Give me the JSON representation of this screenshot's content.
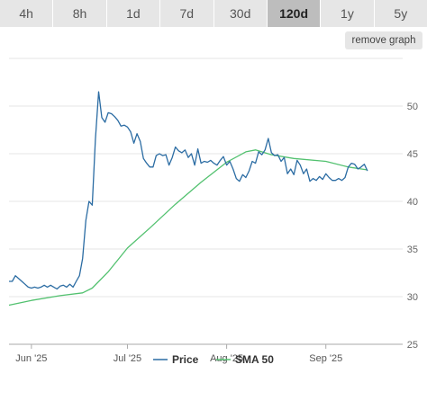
{
  "tabs": [
    {
      "label": "4h",
      "active": false
    },
    {
      "label": "8h",
      "active": false
    },
    {
      "label": "1d",
      "active": false
    },
    {
      "label": "7d",
      "active": false
    },
    {
      "label": "30d",
      "active": false
    },
    {
      "label": "120d",
      "active": true
    },
    {
      "label": "1y",
      "active": false
    },
    {
      "label": "5y",
      "active": false
    }
  ],
  "remove_graph_label": "remove graph",
  "colors": {
    "price": "#2b6ca3",
    "sma": "#52c16f",
    "grid": "#e6e6e6",
    "axis": "#aaaaaa"
  },
  "chart_data": {
    "type": "line",
    "title": "",
    "xlabel": "",
    "ylabel": "",
    "ylim": [
      25,
      55
    ],
    "yticks": [
      25,
      30,
      35,
      40,
      45,
      50
    ],
    "xlim": [
      "2025-05-25",
      "2025-09-25"
    ],
    "xticks": [
      {
        "date": "2025-06-01",
        "label": "Jun '25"
      },
      {
        "date": "2025-07-01",
        "label": "Jul '25"
      },
      {
        "date": "2025-08-01",
        "label": "Aug '25"
      },
      {
        "date": "2025-09-01",
        "label": "Sep '25"
      }
    ],
    "grid": "horizontal",
    "legend_position": "bottom",
    "series": [
      {
        "name": "Price",
        "color": "#2b6ca3",
        "points": [
          [
            "2025-05-25",
            31.6
          ],
          [
            "2025-05-26",
            31.6
          ],
          [
            "2025-05-27",
            32.2
          ],
          [
            "2025-05-28",
            31.9
          ],
          [
            "2025-05-29",
            31.6
          ],
          [
            "2025-05-30",
            31.3
          ],
          [
            "2025-05-31",
            31.0
          ],
          [
            "2025-06-01",
            30.9
          ],
          [
            "2025-06-02",
            31.0
          ],
          [
            "2025-06-03",
            30.9
          ],
          [
            "2025-06-04",
            31.0
          ],
          [
            "2025-06-05",
            31.2
          ],
          [
            "2025-06-06",
            31.0
          ],
          [
            "2025-06-07",
            31.2
          ],
          [
            "2025-06-08",
            31.0
          ],
          [
            "2025-06-09",
            30.8
          ],
          [
            "2025-06-10",
            31.1
          ],
          [
            "2025-06-11",
            31.2
          ],
          [
            "2025-06-12",
            31.0
          ],
          [
            "2025-06-13",
            31.3
          ],
          [
            "2025-06-14",
            31.0
          ],
          [
            "2025-06-15",
            31.6
          ],
          [
            "2025-06-16",
            32.2
          ],
          [
            "2025-06-17",
            34.0
          ],
          [
            "2025-06-18",
            38.0
          ],
          [
            "2025-06-19",
            40.0
          ],
          [
            "2025-06-20",
            39.6
          ],
          [
            "2025-06-21",
            46.5
          ],
          [
            "2025-06-22",
            51.5
          ],
          [
            "2025-06-23",
            48.8
          ],
          [
            "2025-06-24",
            48.3
          ],
          [
            "2025-06-25",
            49.3
          ],
          [
            "2025-06-26",
            49.2
          ],
          [
            "2025-06-27",
            48.9
          ],
          [
            "2025-06-28",
            48.5
          ],
          [
            "2025-06-29",
            47.9
          ],
          [
            "2025-06-30",
            48.0
          ],
          [
            "2025-07-01",
            47.8
          ],
          [
            "2025-07-02",
            47.3
          ],
          [
            "2025-07-03",
            46.1
          ],
          [
            "2025-07-04",
            47.1
          ],
          [
            "2025-07-05",
            46.3
          ],
          [
            "2025-07-06",
            44.5
          ],
          [
            "2025-07-07",
            44.0
          ],
          [
            "2025-07-08",
            43.6
          ],
          [
            "2025-07-09",
            43.6
          ],
          [
            "2025-07-10",
            44.8
          ],
          [
            "2025-07-11",
            45.0
          ],
          [
            "2025-07-12",
            44.8
          ],
          [
            "2025-07-13",
            44.9
          ],
          [
            "2025-07-14",
            43.8
          ],
          [
            "2025-07-15",
            44.6
          ],
          [
            "2025-07-16",
            45.7
          ],
          [
            "2025-07-17",
            45.3
          ],
          [
            "2025-07-18",
            45.1
          ],
          [
            "2025-07-19",
            45.4
          ],
          [
            "2025-07-20",
            44.6
          ],
          [
            "2025-07-21",
            45.0
          ],
          [
            "2025-07-22",
            43.8
          ],
          [
            "2025-07-23",
            45.5
          ],
          [
            "2025-07-24",
            44.0
          ],
          [
            "2025-07-25",
            44.2
          ],
          [
            "2025-07-26",
            44.1
          ],
          [
            "2025-07-27",
            44.3
          ],
          [
            "2025-07-28",
            44.0
          ],
          [
            "2025-07-29",
            43.8
          ],
          [
            "2025-07-30",
            44.3
          ],
          [
            "2025-07-31",
            44.7
          ],
          [
            "2025-08-01",
            43.8
          ],
          [
            "2025-08-02",
            44.2
          ],
          [
            "2025-08-03",
            43.4
          ],
          [
            "2025-08-04",
            42.4
          ],
          [
            "2025-08-05",
            42.1
          ],
          [
            "2025-08-06",
            42.8
          ],
          [
            "2025-08-07",
            42.5
          ],
          [
            "2025-08-08",
            43.2
          ],
          [
            "2025-08-09",
            44.2
          ],
          [
            "2025-08-10",
            44.0
          ],
          [
            "2025-08-11",
            45.2
          ],
          [
            "2025-08-12",
            44.9
          ],
          [
            "2025-08-13",
            45.4
          ],
          [
            "2025-08-14",
            46.6
          ],
          [
            "2025-08-15",
            45.1
          ],
          [
            "2025-08-16",
            44.8
          ],
          [
            "2025-08-17",
            44.9
          ],
          [
            "2025-08-18",
            44.2
          ],
          [
            "2025-08-19",
            44.6
          ],
          [
            "2025-08-20",
            42.9
          ],
          [
            "2025-08-21",
            43.4
          ],
          [
            "2025-08-22",
            42.8
          ],
          [
            "2025-08-23",
            44.3
          ],
          [
            "2025-08-24",
            43.8
          ],
          [
            "2025-08-25",
            42.9
          ],
          [
            "2025-08-26",
            43.4
          ],
          [
            "2025-08-27",
            42.1
          ],
          [
            "2025-08-28",
            42.4
          ],
          [
            "2025-08-29",
            42.2
          ],
          [
            "2025-08-30",
            42.6
          ],
          [
            "2025-08-31",
            42.3
          ],
          [
            "2025-09-01",
            42.9
          ],
          [
            "2025-09-02",
            42.5
          ],
          [
            "2025-09-03",
            42.2
          ],
          [
            "2025-09-04",
            42.2
          ],
          [
            "2025-09-05",
            42.4
          ],
          [
            "2025-09-06",
            42.2
          ],
          [
            "2025-09-07",
            42.5
          ],
          [
            "2025-09-08",
            43.6
          ],
          [
            "2025-09-09",
            44.0
          ],
          [
            "2025-09-10",
            43.9
          ],
          [
            "2025-09-11",
            43.4
          ],
          [
            "2025-09-12",
            43.6
          ],
          [
            "2025-09-13",
            43.9
          ],
          [
            "2025-09-14",
            43.2
          ]
        ]
      },
      {
        "name": "SMA 50",
        "color": "#52c16f",
        "points": [
          [
            "2025-05-25",
            29.1
          ],
          [
            "2025-06-01",
            29.6
          ],
          [
            "2025-06-10",
            30.1
          ],
          [
            "2025-06-17",
            30.4
          ],
          [
            "2025-06-20",
            30.9
          ],
          [
            "2025-06-25",
            32.6
          ],
          [
            "2025-07-01",
            35.1
          ],
          [
            "2025-07-08",
            37.2
          ],
          [
            "2025-07-16",
            39.7
          ],
          [
            "2025-07-24",
            42.0
          ],
          [
            "2025-08-01",
            44.1
          ],
          [
            "2025-08-07",
            45.2
          ],
          [
            "2025-08-10",
            45.4
          ],
          [
            "2025-08-15",
            44.9
          ],
          [
            "2025-08-22",
            44.5
          ],
          [
            "2025-09-01",
            44.2
          ],
          [
            "2025-09-08",
            43.6
          ],
          [
            "2025-09-14",
            43.3
          ]
        ]
      }
    ]
  }
}
